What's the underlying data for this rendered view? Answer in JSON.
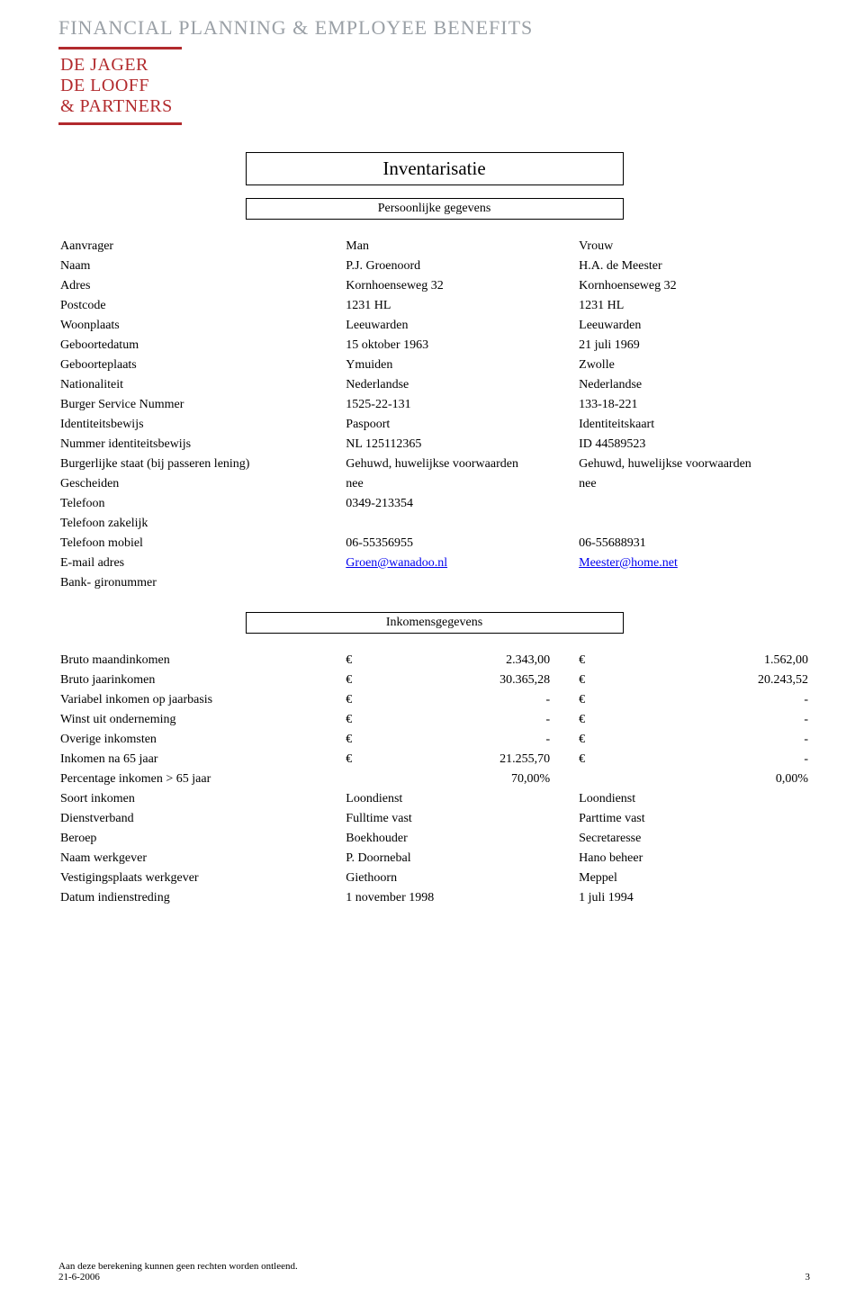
{
  "header": {
    "topline": "FINANCIAL PLANNING & EMPLOYEE BENEFITS",
    "logo1": "DE JAGER",
    "logo2": "DE LOOFF",
    "logo3": "& PARTNERS",
    "logo_color": "#b22a2d",
    "topline_color": "#9aa0a6"
  },
  "titles": {
    "main": "Inventarisatie",
    "personal": "Persoonlijke gegevens",
    "income": "Inkomensgegevens"
  },
  "personal": {
    "rows": [
      {
        "label": "Aanvrager",
        "man": "Man",
        "vrouw": "Vrouw"
      },
      {
        "label": "Naam",
        "man": "P.J. Groenoord",
        "vrouw": "H.A. de Meester"
      },
      {
        "label": "Adres",
        "man": "Kornhoenseweg 32",
        "vrouw": "Kornhoenseweg 32"
      },
      {
        "label": "Postcode",
        "man": "1231 HL",
        "vrouw": "1231 HL"
      },
      {
        "label": "Woonplaats",
        "man": "Leeuwarden",
        "vrouw": "Leeuwarden"
      },
      {
        "label": "Geboortedatum",
        "man": "15 oktober 1963",
        "vrouw": "21 juli 1969"
      },
      {
        "label": "Geboorteplaats",
        "man": "Ymuiden",
        "vrouw": "Zwolle"
      },
      {
        "label": "Nationaliteit",
        "man": "Nederlandse",
        "vrouw": "Nederlandse"
      },
      {
        "label": "Burger Service Nummer",
        "man": "1525-22-131",
        "vrouw": "133-18-221"
      },
      {
        "label": "Identiteitsbewijs",
        "man": "Paspoort",
        "vrouw": "Identiteitskaart"
      },
      {
        "label": "Nummer identiteitsbewijs",
        "man": "NL 125112365",
        "vrouw": "ID 44589523"
      },
      {
        "label": "Burgerlijke staat (bij passeren lening)",
        "man": "Gehuwd, huwelijkse voorwaarden",
        "vrouw": "Gehuwd, huwelijkse voorwaarden"
      },
      {
        "label": "Gescheiden",
        "man": "nee",
        "vrouw": "nee"
      },
      {
        "label": "Telefoon",
        "man": "0349-213354",
        "vrouw": ""
      },
      {
        "label": "Telefoon zakelijk",
        "man": "",
        "vrouw": ""
      },
      {
        "label": "Telefoon mobiel",
        "man": "06-55356955",
        "vrouw": "06-55688931"
      }
    ],
    "email_label": "E-mail adres",
    "email_man": "Groen@wanadoo.nl",
    "email_vrouw": "Meester@home.net",
    "bank_label": "Bank- gironummer"
  },
  "income": {
    "money_rows": [
      {
        "label": "Bruto maandinkomen",
        "v1": "2.343,00",
        "v2": "1.562,00"
      },
      {
        "label": "Bruto jaarinkomen",
        "v1": "30.365,28",
        "v2": "20.243,52"
      },
      {
        "label": "Variabel inkomen op jaarbasis",
        "v1": "-",
        "v2": "-"
      },
      {
        "label": "Winst uit onderneming",
        "v1": "-",
        "v2": "-"
      },
      {
        "label": "Overige inkomsten",
        "v1": "-",
        "v2": "-"
      },
      {
        "label": "Inkomen na 65 jaar",
        "v1": "21.255,70",
        "v2": "-"
      }
    ],
    "pct_label": "Percentage inkomen > 65 jaar",
    "pct_v1": "70,00%",
    "pct_v2": "0,00%",
    "text_rows": [
      {
        "label": "Soort inkomen",
        "v1": "Loondienst",
        "v2": "Loondienst"
      },
      {
        "label": "Dienstverband",
        "v1": "Fulltime vast",
        "v2": "Parttime vast"
      },
      {
        "label": "Beroep",
        "v1": "Boekhouder",
        "v2": "Secretaresse"
      },
      {
        "label": "Naam werkgever",
        "v1": "P. Doornebal",
        "v2": "Hano beheer"
      },
      {
        "label": "Vestigingsplaats werkgever",
        "v1": "Giethoorn",
        "v2": "Meppel"
      },
      {
        "label": "Datum indienstreding",
        "v1": "1 november 1998",
        "v2": "1 juli 1994"
      }
    ],
    "euro": "€"
  },
  "footer": {
    "disclaimer": "Aan deze berekening kunnen geen rechten worden ontleend.",
    "date": "21-6-2006",
    "page": "3"
  }
}
